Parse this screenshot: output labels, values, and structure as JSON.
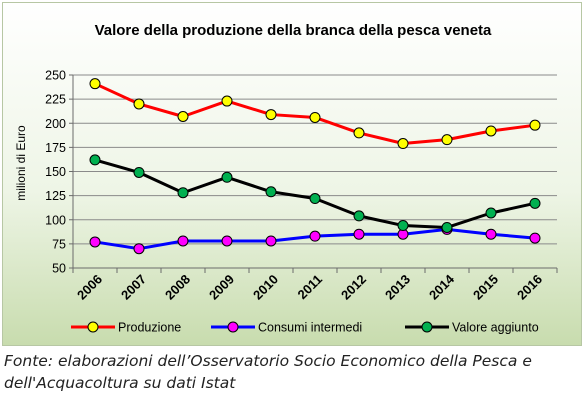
{
  "chart_data": {
    "type": "line",
    "title": "Valore della produzione della branca della pesca veneta",
    "ylabel": "milioni di Euro",
    "xlabel": "",
    "ylim": [
      50,
      250
    ],
    "yticks": [
      50,
      75,
      100,
      125,
      150,
      175,
      200,
      225,
      250
    ],
    "grid": "horizontal",
    "legend_position": "bottom",
    "categories": [
      "2006",
      "2007",
      "2008",
      "2009",
      "2010",
      "2011",
      "2012",
      "2013",
      "2014",
      "2015",
      "2016"
    ],
    "series": [
      {
        "name": "Produzione",
        "line_color": "#ff0000",
        "marker_color": "#ffff00",
        "values": [
          241,
          220,
          207,
          223,
          209,
          206,
          190,
          179,
          183,
          192,
          198
        ]
      },
      {
        "name": "Consumi intermedi",
        "line_color": "#0000ff",
        "marker_color": "#ff00ff",
        "values": [
          77,
          70,
          78,
          78,
          78,
          83,
          85,
          85,
          90,
          85,
          81
        ]
      },
      {
        "name": "Valore aggiunto",
        "line_color": "#000000",
        "marker_color": "#00b050",
        "values": [
          162,
          149,
          128,
          144,
          129,
          122,
          104,
          94,
          92,
          107,
          117
        ]
      }
    ]
  },
  "caption": {
    "line1": "Fonte: elaborazioni dell’Osservatorio Socio Economico della Pesca e",
    "line2": "dell'Acquacoltura su dati Istat"
  }
}
